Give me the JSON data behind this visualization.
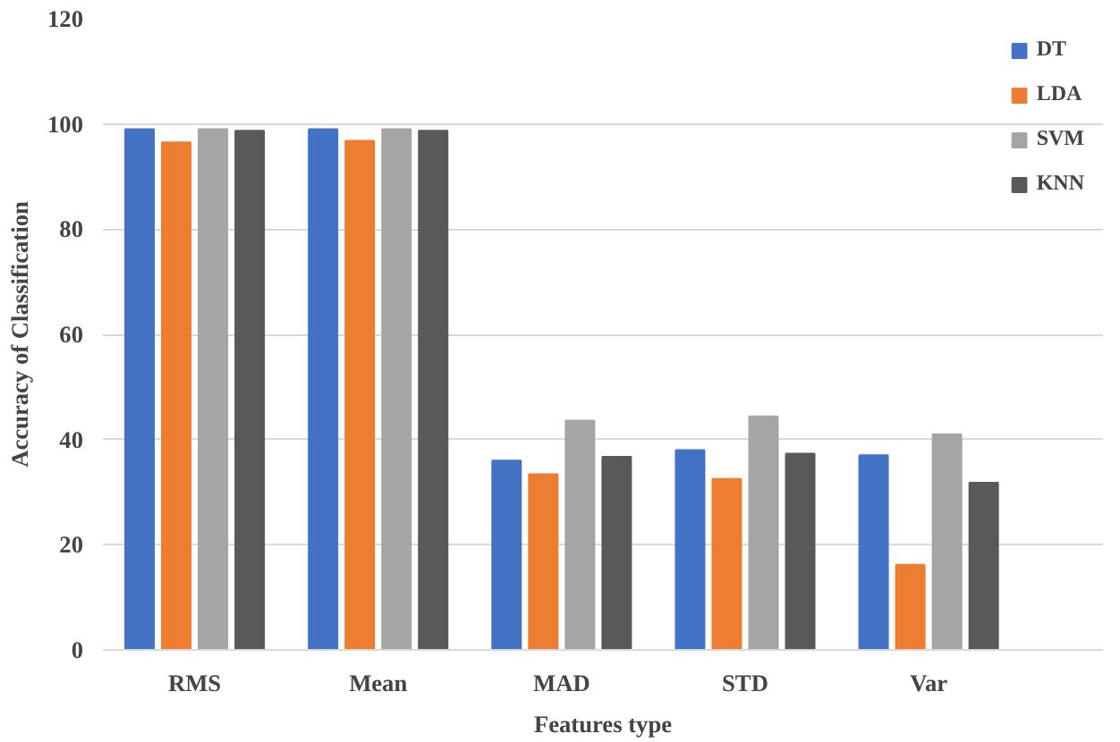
{
  "chart_data": {
    "type": "bar",
    "xlabel": "Features type",
    "ylabel": "Accuracy of Classification",
    "categories": [
      "RMS",
      "Mean",
      "MAD",
      "STD",
      "Var"
    ],
    "series": [
      {
        "name": "DT",
        "color": "#4472c4",
        "values": [
          99,
          99,
          36,
          38,
          37
        ]
      },
      {
        "name": "LDA",
        "color": "#ed7d31",
        "values": [
          96.5,
          96.8,
          33.4,
          32.5,
          16.2
        ]
      },
      {
        "name": "SVM",
        "color": "#a5a5a5",
        "values": [
          99,
          99,
          43.6,
          44.4,
          41
        ]
      },
      {
        "name": "KNN",
        "color": "#595959",
        "values": [
          98.7,
          98.7,
          36.7,
          37.3,
          31.8
        ]
      }
    ],
    "ylim": [
      0,
      120
    ],
    "yticks": [
      0,
      20,
      40,
      60,
      80,
      100,
      120
    ],
    "grid": "y",
    "legend": "top right"
  }
}
